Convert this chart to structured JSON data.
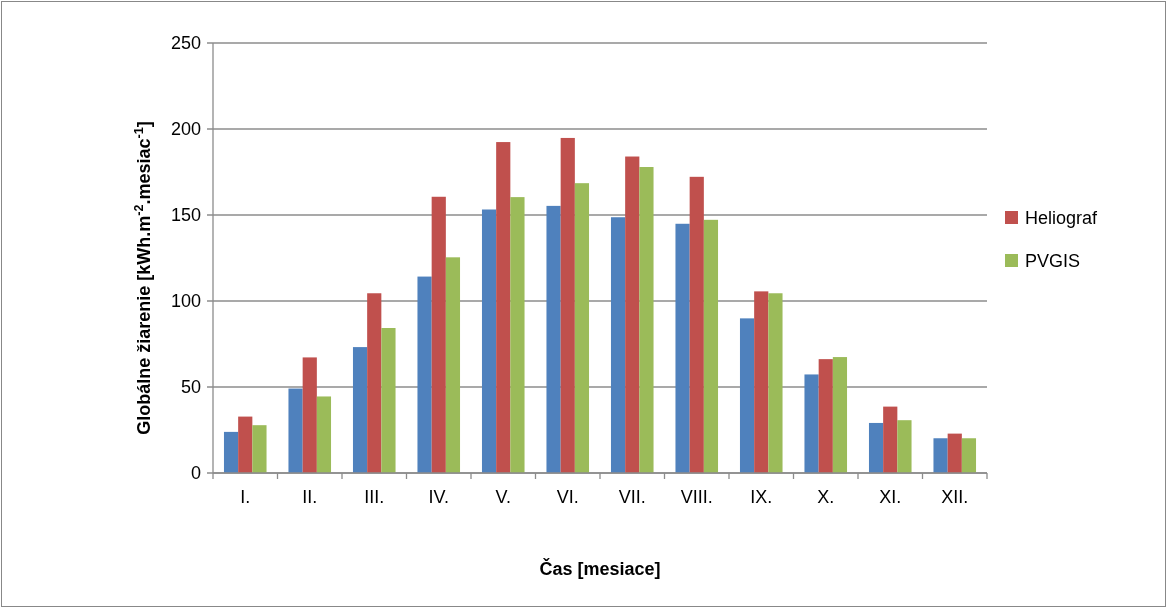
{
  "chart_data": {
    "type": "bar",
    "xlabel": "Čas [mesiace]",
    "ylabel": "Globálne žiarenie [kWh.m$^{-2}$.mesiac$^{-1}$]",
    "categories": [
      "I.",
      "II.",
      "III.",
      "IV.",
      "V.",
      "VI.",
      "VII.",
      "VIII.",
      "IX.",
      "X.",
      "XI.",
      "XII."
    ],
    "series": [
      {
        "color": "#4f81bd",
        "values": [
          23.9,
          49.1,
          73.2,
          114.2,
          153.2,
          155.3,
          148.7,
          144.9,
          89.9,
          57.3,
          29.1,
          20.2
        ]
      },
      {
        "name": "Heliograf",
        "color": "#c0504d",
        "values": [
          32.8,
          67.2,
          104.5,
          160.6,
          192.4,
          194.8,
          184,
          172.2,
          105.6,
          66.2,
          38.6,
          22.9
        ]
      },
      {
        "name": "PVGIS",
        "color": "#9bbb59",
        "values": [
          27.8,
          44.5,
          84.3,
          125.4,
          160.4,
          168.5,
          177.9,
          147.2,
          104.5,
          67.4,
          30.7,
          20.2
        ]
      }
    ],
    "ylim": [
      0,
      250
    ],
    "yticks": [
      0,
      50,
      100,
      150,
      200,
      250
    ],
    "grid": "y",
    "legend": "right"
  }
}
